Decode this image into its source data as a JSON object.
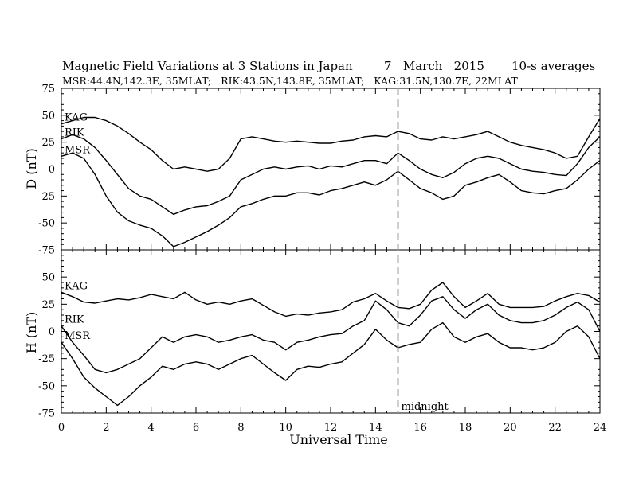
{
  "chart_data": {
    "type": "line",
    "title": "Magnetic Field Variations at 3 Stations in Japan",
    "date": "7   March   2015",
    "averaging": "10-s averages",
    "subtitle": "MSR:44.4N,142.3E, 35MLAT;   RIK:43.5N,143.8E, 35MLAT;   KAG:31.5N,130.7E, 22MLAT",
    "xlabel": "Universal Time",
    "xlim": [
      0,
      24
    ],
    "xticks": [
      0,
      2,
      4,
      6,
      8,
      10,
      12,
      14,
      16,
      18,
      20,
      22,
      24
    ],
    "grid": false,
    "marker": {
      "x": 15,
      "label": "midnight",
      "style": "dashed",
      "color": "#a0a0a0"
    },
    "panels": [
      {
        "ylabel": "D (nT)",
        "ylim": [
          -75,
          75
        ],
        "yticks": [
          75,
          50,
          25,
          0,
          -25,
          -50,
          -75
        ],
        "series": [
          {
            "name": "KAG",
            "x": [
              0,
              0.5,
              1,
              1.5,
              2,
              2.5,
              3,
              3.5,
              4,
              4.5,
              5,
              5.5,
              6,
              6.5,
              7,
              7.5,
              8,
              8.5,
              9,
              9.5,
              10,
              10.5,
              11,
              11.5,
              12,
              12.5,
              13,
              13.5,
              14,
              14.5,
              15,
              15.5,
              16,
              16.5,
              17,
              17.5,
              18,
              18.5,
              19,
              19.5,
              20,
              20.5,
              21,
              21.5,
              22,
              22.5,
              23,
              23.5,
              24
            ],
            "y": [
              42,
              45,
              48,
              48,
              45,
              40,
              33,
              25,
              18,
              8,
              0,
              2,
              0,
              -2,
              0,
              10,
              28,
              30,
              28,
              26,
              25,
              26,
              25,
              24,
              24,
              26,
              27,
              30,
              31,
              30,
              35,
              33,
              28,
              27,
              30,
              28,
              30,
              32,
              35,
              30,
              25,
              22,
              20,
              18,
              15,
              10,
              12,
              30,
              47
            ]
          },
          {
            "name": "RIK",
            "x": [
              0,
              0.5,
              1,
              1.5,
              2,
              2.5,
              3,
              3.5,
              4,
              4.5,
              5,
              5.5,
              6,
              6.5,
              7,
              7.5,
              8,
              8.5,
              9,
              9.5,
              10,
              10.5,
              11,
              11.5,
              12,
              12.5,
              13,
              13.5,
              14,
              14.5,
              15,
              15.5,
              16,
              16.5,
              17,
              17.5,
              18,
              18.5,
              19,
              19.5,
              20,
              20.5,
              21,
              21.5,
              22,
              22.5,
              23,
              23.5,
              24
            ],
            "y": [
              28,
              32,
              28,
              20,
              8,
              -5,
              -18,
              -25,
              -28,
              -35,
              -42,
              -38,
              -35,
              -34,
              -30,
              -25,
              -10,
              -5,
              0,
              2,
              0,
              2,
              3,
              0,
              3,
              2,
              5,
              8,
              8,
              5,
              15,
              8,
              0,
              -5,
              -8,
              -3,
              5,
              10,
              12,
              10,
              5,
              0,
              -2,
              -3,
              -5,
              -6,
              5,
              20,
              30
            ]
          },
          {
            "name": "MSR",
            "x": [
              0,
              0.5,
              1,
              1.5,
              2,
              2.5,
              3,
              3.5,
              4,
              4.5,
              5,
              5.5,
              6,
              6.5,
              7,
              7.5,
              8,
              8.5,
              9,
              9.5,
              10,
              10.5,
              11,
              11.5,
              12,
              12.5,
              13,
              13.5,
              14,
              14.5,
              15,
              15.5,
              16,
              16.5,
              17,
              17.5,
              18,
              18.5,
              19,
              19.5,
              20,
              20.5,
              21,
              21.5,
              22,
              22.5,
              23,
              23.5,
              24
            ],
            "y": [
              12,
              15,
              10,
              -5,
              -25,
              -40,
              -48,
              -52,
              -55,
              -62,
              -72,
              -68,
              -63,
              -58,
              -52,
              -45,
              -35,
              -32,
              -28,
              -25,
              -25,
              -22,
              -22,
              -24,
              -20,
              -18,
              -15,
              -12,
              -15,
              -10,
              -2,
              -10,
              -18,
              -22,
              -28,
              -25,
              -15,
              -12,
              -8,
              -5,
              -12,
              -20,
              -22,
              -23,
              -20,
              -18,
              -10,
              0,
              8
            ]
          }
        ]
      },
      {
        "ylabel": "H (nT)",
        "ylim": [
          -75,
          75
        ],
        "yticks": [
          50,
          25,
          0,
          -25,
          -50,
          -75
        ],
        "series": [
          {
            "name": "KAG",
            "x": [
              0,
              0.5,
              1,
              1.5,
              2,
              2.5,
              3,
              3.5,
              4,
              4.5,
              5,
              5.5,
              6,
              6.5,
              7,
              7.5,
              8,
              8.5,
              9,
              9.5,
              10,
              10.5,
              11,
              11.5,
              12,
              12.5,
              13,
              13.5,
              14,
              14.5,
              15,
              15.5,
              16,
              16.5,
              17,
              17.5,
              18,
              18.5,
              19,
              19.5,
              20,
              20.5,
              21,
              21.5,
              22,
              22.5,
              23,
              23.5,
              24
            ],
            "y": [
              36,
              32,
              27,
              26,
              28,
              30,
              29,
              31,
              34,
              32,
              30,
              36,
              29,
              25,
              27,
              25,
              28,
              30,
              24,
              18,
              14,
              16,
              15,
              17,
              18,
              20,
              27,
              30,
              35,
              28,
              22,
              21,
              25,
              38,
              45,
              32,
              22,
              28,
              35,
              25,
              22,
              22,
              22,
              23,
              28,
              32,
              35,
              33,
              27
            ]
          },
          {
            "name": "RIK",
            "x": [
              0,
              0.5,
              1,
              1.5,
              2,
              2.5,
              3,
              3.5,
              4,
              4.5,
              5,
              5.5,
              6,
              6.5,
              7,
              7.5,
              8,
              8.5,
              9,
              9.5,
              10,
              10.5,
              11,
              11.5,
              12,
              12.5,
              13,
              13.5,
              14,
              14.5,
              15,
              15.5,
              16,
              16.5,
              17,
              17.5,
              18,
              18.5,
              19,
              19.5,
              20,
              20.5,
              21,
              21.5,
              22,
              22.5,
              23,
              23.5,
              24
            ],
            "y": [
              5,
              -10,
              -22,
              -35,
              -38,
              -35,
              -30,
              -25,
              -15,
              -5,
              -10,
              -5,
              -3,
              -5,
              -10,
              -8,
              -5,
              -3,
              -8,
              -10,
              -17,
              -10,
              -8,
              -5,
              -3,
              -2,
              5,
              10,
              28,
              20,
              8,
              5,
              15,
              28,
              32,
              20,
              12,
              20,
              25,
              15,
              10,
              8,
              8,
              10,
              15,
              22,
              27,
              20,
              0
            ]
          },
          {
            "name": "MSR",
            "x": [
              0,
              0.5,
              1,
              1.5,
              2,
              2.5,
              3,
              3.5,
              4,
              4.5,
              5,
              5.5,
              6,
              6.5,
              7,
              7.5,
              8,
              8.5,
              9,
              9.5,
              10,
              10.5,
              11,
              11.5,
              12,
              12.5,
              13,
              13.5,
              14,
              14.5,
              15,
              15.5,
              16,
              16.5,
              17,
              17.5,
              18,
              18.5,
              19,
              19.5,
              20,
              20.5,
              21,
              21.5,
              22,
              22.5,
              23,
              23.5,
              24
            ],
            "y": [
              -10,
              -25,
              -42,
              -52,
              -60,
              -68,
              -60,
              -50,
              -42,
              -32,
              -35,
              -30,
              -28,
              -30,
              -35,
              -30,
              -25,
              -22,
              -30,
              -38,
              -45,
              -35,
              -32,
              -33,
              -30,
              -28,
              -20,
              -12,
              2,
              -8,
              -15,
              -12,
              -10,
              2,
              8,
              -5,
              -10,
              -5,
              -2,
              -10,
              -15,
              -15,
              -17,
              -15,
              -10,
              0,
              5,
              -5,
              -25
            ]
          }
        ]
      }
    ]
  }
}
